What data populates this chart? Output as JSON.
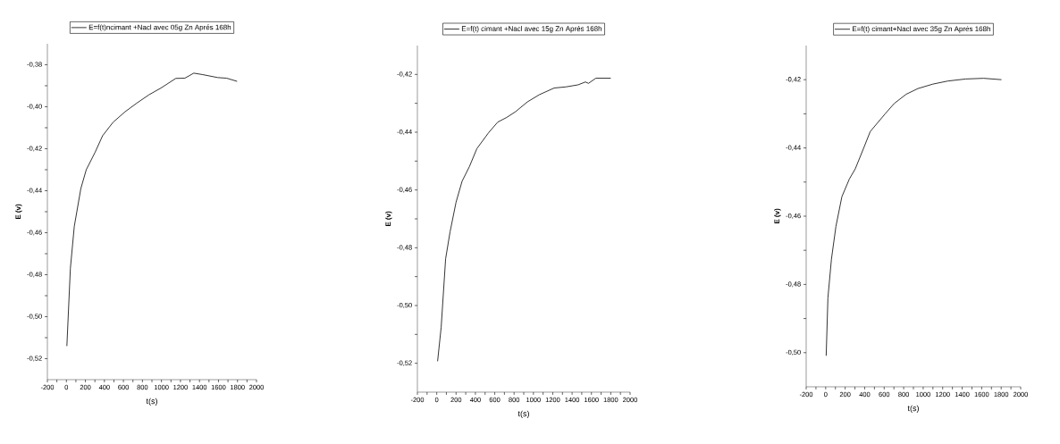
{
  "chart_data": [
    {
      "type": "line",
      "xlabel": "t(s)",
      "ylabel": "E (v)",
      "legend": "top",
      "xlim": [
        -200,
        2000
      ],
      "ylim": [
        -0.53,
        -0.37
      ],
      "xticks": [
        -200,
        {
          "value": -100,
          "label": null
        },
        0,
        {
          "value": 100,
          "label": null
        },
        200,
        {
          "value": 300,
          "label": null
        },
        400,
        {
          "value": 500,
          "label": null
        },
        600,
        {
          "value": 700,
          "label": null
        },
        800,
        {
          "value": 900,
          "label": null
        },
        1000,
        {
          "value": 1100,
          "label": null
        },
        1200,
        {
          "value": 1300,
          "label": null
        },
        1400,
        {
          "value": 1500,
          "label": null
        },
        1600,
        {
          "value": 1700,
          "label": null
        },
        1800,
        {
          "value": 1900,
          "label": null
        },
        2000
      ],
      "yticks": [
        {
          "value": -0.52,
          "label": "-0,52"
        },
        {
          "value": -0.51,
          "label": null
        },
        {
          "value": -0.5,
          "label": "-0,50"
        },
        {
          "value": -0.49,
          "label": null
        },
        {
          "value": -0.48,
          "label": "-0,48"
        },
        {
          "value": -0.47,
          "label": null
        },
        {
          "value": -0.46,
          "label": "-0,46"
        },
        {
          "value": -0.45,
          "label": null
        },
        {
          "value": -0.44,
          "label": "-0,44"
        },
        {
          "value": -0.43,
          "label": null
        },
        {
          "value": -0.42,
          "label": "-0,42"
        },
        {
          "value": -0.41,
          "label": null
        },
        {
          "value": -0.4,
          "label": "-0,40"
        },
        {
          "value": -0.39,
          "label": null
        },
        {
          "value": -0.38,
          "label": "-0,38"
        }
      ],
      "series": [
        {
          "name": "E=f(t)ncimant +Nacl avec 05g Zn Aprés 168h",
          "color": "#000000",
          "x": [
            5,
            42,
            83,
            152,
            209,
            303,
            381,
            491,
            617,
            743,
            869,
            994,
            1151,
            1246,
            1340,
            1434,
            1591,
            1686,
            1796
          ],
          "values": [
            -0.514,
            -0.477,
            -0.457,
            -0.439,
            -0.43,
            -0.4216,
            -0.4138,
            -0.4074,
            -0.4024,
            -0.3982,
            -0.3943,
            -0.3911,
            -0.3865,
            -0.3864,
            -0.384,
            -0.3847,
            -0.3861,
            -0.3864,
            -0.3879
          ]
        }
      ]
    },
    {
      "type": "line",
      "xlabel": "t(s)",
      "ylabel": "E (v)",
      "legend": "top",
      "xlim": [
        -200,
        2000
      ],
      "ylim": [
        -0.53,
        -0.41
      ],
      "xticks": [
        -200,
        {
          "value": -100,
          "label": null
        },
        0,
        {
          "value": 100,
          "label": null
        },
        200,
        {
          "value": 300,
          "label": null
        },
        400,
        {
          "value": 500,
          "label": null
        },
        600,
        {
          "value": 700,
          "label": null
        },
        800,
        {
          "value": 900,
          "label": null
        },
        1000,
        {
          "value": 1100,
          "label": null
        },
        1200,
        {
          "value": 1300,
          "label": null
        },
        1400,
        {
          "value": 1500,
          "label": null
        },
        1600,
        {
          "value": 1700,
          "label": null
        },
        1800,
        {
          "value": 1900,
          "label": null
        },
        2000
      ],
      "yticks": [
        {
          "value": -0.52,
          "label": "-0,52"
        },
        {
          "value": -0.51,
          "label": null
        },
        {
          "value": -0.5,
          "label": "-0,50"
        },
        {
          "value": -0.49,
          "label": null
        },
        {
          "value": -0.48,
          "label": "-0,48"
        },
        {
          "value": -0.47,
          "label": null
        },
        {
          "value": -0.46,
          "label": "-0,46"
        },
        {
          "value": -0.45,
          "label": null
        },
        {
          "value": -0.44,
          "label": "-0,44"
        },
        {
          "value": -0.43,
          "label": null
        },
        {
          "value": -0.42,
          "label": "-0,42"
        }
      ],
      "series": [
        {
          "name": "E=f(t) cimant +Nacl avec 15g Zn Aprés 168h",
          "color": "#000000",
          "x": [
            9,
            46,
            92,
            138,
            200,
            262,
            338,
            415,
            538,
            631,
            723,
            815,
            938,
            1062,
            1215,
            1338,
            1462,
            1538,
            1569,
            1646,
            1800
          ],
          "values": [
            -0.5193,
            -0.5075,
            -0.4838,
            -0.4745,
            -0.4642,
            -0.457,
            -0.4519,
            -0.4457,
            -0.4401,
            -0.4365,
            -0.4349,
            -0.4329,
            -0.4295,
            -0.427,
            -0.4247,
            -0.4243,
            -0.4236,
            -0.4226,
            -0.4231,
            -0.4213,
            -0.4213
          ]
        }
      ]
    },
    {
      "type": "line",
      "xlabel": "t(s)",
      "ylabel": "E (v)",
      "legend": "top",
      "xlim": [
        -200,
        2000
      ],
      "ylim": [
        -0.51,
        -0.41
      ],
      "xticks": [
        -200,
        {
          "value": -100,
          "label": null
        },
        0,
        {
          "value": 100,
          "label": null
        },
        200,
        {
          "value": 300,
          "label": null
        },
        400,
        {
          "value": 500,
          "label": null
        },
        600,
        {
          "value": 700,
          "label": null
        },
        800,
        {
          "value": 900,
          "label": null
        },
        1000,
        {
          "value": 1100,
          "label": null
        },
        1200,
        {
          "value": 1300,
          "label": null
        },
        1400,
        {
          "value": 1500,
          "label": null
        },
        1600,
        {
          "value": 1700,
          "label": null
        },
        1800,
        {
          "value": 1900,
          "label": null
        },
        2000
      ],
      "yticks": [
        {
          "value": -0.5,
          "label": "-0,50"
        },
        {
          "value": -0.49,
          "label": null
        },
        {
          "value": -0.48,
          "label": "-0,48"
        },
        {
          "value": -0.47,
          "label": null
        },
        {
          "value": -0.46,
          "label": "-0,46"
        },
        {
          "value": -0.45,
          "label": null
        },
        {
          "value": -0.44,
          "label": "-0,44"
        },
        {
          "value": -0.43,
          "label": null
        },
        {
          "value": -0.42,
          "label": "-0,42"
        }
      ],
      "series": [
        {
          "name": "E=f(t) cimant+Nacl avec 35g Zn Aprés 168h",
          "color": "#000000",
          "x": [
            5,
            23,
            59,
            105,
            166,
            243,
            304,
            396,
            457,
            610,
            702,
            824,
            946,
            1099,
            1252,
            1436,
            1619,
            1803
          ],
          "values": [
            -0.5009,
            -0.4839,
            -0.4726,
            -0.463,
            -0.4543,
            -0.4491,
            -0.4461,
            -0.4396,
            -0.4352,
            -0.43,
            -0.427,
            -0.4243,
            -0.4226,
            -0.4213,
            -0.4204,
            -0.4198,
            -0.4196,
            -0.42
          ]
        }
      ]
    }
  ]
}
